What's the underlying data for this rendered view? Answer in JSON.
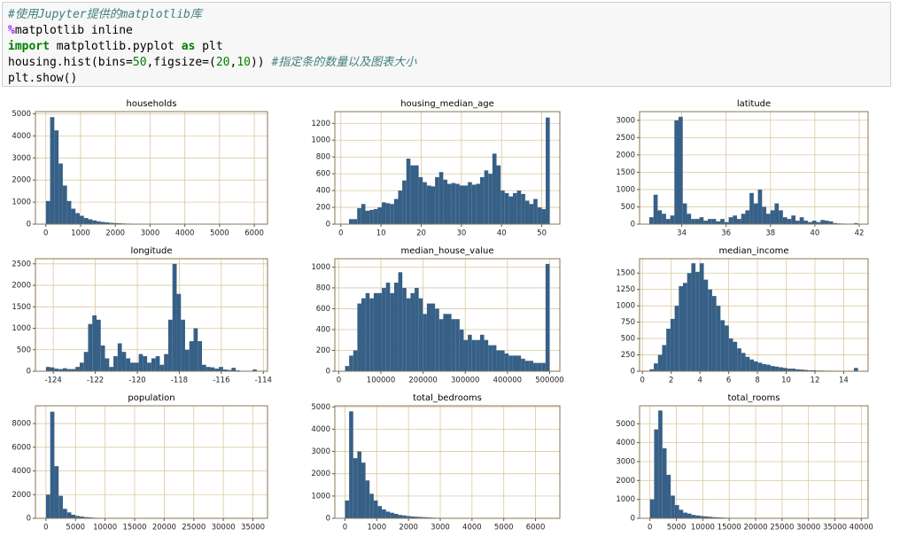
{
  "code": {
    "lines": [
      [
        "#使用Jupyter提供的matplotlib库"
      ],
      [
        "%",
        "matplotlib inline"
      ],
      [
        "import",
        " matplotlib.pyplot ",
        "as",
        " plt"
      ],
      [
        "housing.hist(bins=",
        "50",
        ",figsize=(",
        "20",
        ",",
        "10",
        ")) ",
        "#指定条的数量以及图表大小"
      ],
      [
        "plt.show()"
      ]
    ]
  },
  "chart_data": [
    {
      "type": "histogram",
      "title": "households",
      "color": "#376087",
      "grid": true,
      "bins": [
        1,
        122.6,
        244.2,
        365.9,
        487.5,
        609.1,
        730.7,
        852.3,
        974,
        1095.6,
        1217.2,
        1338.8,
        1460.4,
        1582.1,
        1703.7,
        1825.3,
        1946.9,
        2068.5,
        2190.2,
        2311.8,
        2433.4,
        2555,
        2676.6,
        2798.3,
        2919.9,
        3041.5,
        3163.1,
        3284.7,
        3406.4,
        3528,
        3649.6,
        3771.2,
        3892.8,
        4014.5,
        4136.1,
        4257.7,
        4379.3,
        4500.9,
        4622.6,
        4744.2,
        4865.8,
        4987.4,
        5109,
        5230.7,
        5352.3,
        5473.9,
        5595.5,
        5717.1,
        5838.8,
        5960.4,
        6082
      ],
      "counts": [
        1050,
        4850,
        4250,
        2750,
        1750,
        1050,
        700,
        500,
        380,
        280,
        220,
        170,
        130,
        100,
        80,
        60,
        50,
        40,
        30,
        25,
        20,
        16,
        12,
        10,
        8,
        6,
        5,
        4,
        3,
        3,
        2,
        2,
        2,
        1,
        1,
        1,
        1,
        1,
        1,
        0,
        1,
        0,
        1,
        0,
        0,
        1,
        0,
        0,
        0,
        1
      ],
      "xlim": [
        -300,
        6380
      ],
      "xticks": [
        0,
        1000,
        2000,
        3000,
        4000,
        5000,
        6000
      ],
      "ylim": [
        0,
        5100
      ],
      "yticks": [
        0,
        1000,
        2000,
        3000,
        4000,
        5000
      ]
    },
    {
      "type": "histogram",
      "title": "housing_median_age",
      "color": "#376087",
      "grid": true,
      "bins": [
        1,
        2.02,
        3.04,
        4.06,
        5.08,
        6.1,
        7.12,
        8.14,
        9.16,
        10.18,
        11.2,
        12.22,
        13.24,
        14.26,
        15.28,
        16.3,
        17.32,
        18.34,
        19.36,
        20.38,
        21.4,
        22.42,
        23.44,
        24.46,
        25.48,
        26.5,
        27.52,
        28.54,
        29.56,
        30.58,
        31.6,
        32.62,
        33.64,
        34.66,
        35.68,
        36.7,
        37.72,
        38.74,
        39.76,
        40.78,
        41.8,
        42.82,
        43.84,
        44.86,
        45.88,
        46.9,
        47.92,
        48.94,
        49.96,
        50.98,
        52
      ],
      "counts": [
        4,
        60,
        60,
        190,
        240,
        160,
        170,
        180,
        200,
        260,
        250,
        240,
        300,
        400,
        520,
        780,
        700,
        700,
        560,
        500,
        460,
        450,
        560,
        620,
        530,
        480,
        490,
        480,
        460,
        460,
        500,
        470,
        480,
        560,
        640,
        600,
        840,
        700,
        400,
        370,
        330,
        370,
        400,
        360,
        280,
        240,
        300,
        200,
        180,
        1270
      ],
      "xlim": [
        -1.5,
        54.5
      ],
      "xticks": [
        0,
        10,
        20,
        30,
        40,
        50
      ],
      "ylim": [
        0,
        1340
      ],
      "yticks": [
        0,
        200,
        400,
        600,
        800,
        1000,
        1200
      ]
    },
    {
      "type": "histogram",
      "title": "latitude",
      "color": "#376087",
      "grid": true,
      "bins": [
        32.54,
        32.728,
        32.916,
        33.105,
        33.293,
        33.481,
        33.669,
        33.857,
        34.046,
        34.234,
        34.422,
        34.61,
        34.798,
        34.987,
        35.175,
        35.363,
        35.551,
        35.739,
        35.928,
        36.116,
        36.304,
        36.492,
        36.68,
        36.869,
        37.057,
        37.245,
        37.433,
        37.621,
        37.81,
        37.998,
        38.186,
        38.374,
        38.562,
        38.751,
        38.939,
        39.127,
        39.315,
        39.503,
        39.692,
        39.88,
        40.068,
        40.256,
        40.444,
        40.633,
        40.821,
        41.009,
        41.197,
        41.385,
        41.574,
        41.762,
        41.95
      ],
      "counts": [
        200,
        850,
        400,
        300,
        150,
        250,
        3000,
        3100,
        600,
        300,
        150,
        150,
        200,
        100,
        150,
        150,
        80,
        150,
        60,
        200,
        250,
        150,
        300,
        400,
        900,
        600,
        1000,
        500,
        300,
        400,
        600,
        400,
        200,
        150,
        250,
        100,
        200,
        100,
        60,
        100,
        60,
        120,
        100,
        80,
        30,
        20,
        15,
        10,
        10,
        30
      ],
      "xlim": [
        32.1,
        42.4
      ],
      "xticks": [
        34,
        36,
        38,
        40,
        42
      ],
      "ylim": [
        0,
        3250
      ],
      "yticks": [
        0,
        500,
        1000,
        1500,
        2000,
        2500,
        3000
      ]
    },
    {
      "type": "histogram",
      "title": "longitude",
      "color": "#376087",
      "grid": true,
      "bins": [
        -124.35,
        -124.149,
        -123.948,
        -123.748,
        -123.547,
        -123.346,
        -123.145,
        -122.944,
        -122.744,
        -122.543,
        -122.342,
        -122.141,
        -121.94,
        -121.74,
        -121.539,
        -121.338,
        -121.137,
        -120.936,
        -120.736,
        -120.535,
        -120.334,
        -120.133,
        -119.932,
        -119.732,
        -119.531,
        -119.33,
        -119.129,
        -118.928,
        -118.728,
        -118.527,
        -118.326,
        -118.125,
        -117.924,
        -117.724,
        -117.523,
        -117.322,
        -117.121,
        -116.92,
        -116.72,
        -116.519,
        -116.318,
        -116.117,
        -115.916,
        -115.716,
        -115.515,
        -115.314,
        -115.113,
        -114.912,
        -114.712,
        -114.511,
        -114.31
      ],
      "counts": [
        100,
        90,
        60,
        50,
        70,
        50,
        50,
        100,
        200,
        450,
        1100,
        1300,
        1200,
        600,
        300,
        100,
        350,
        650,
        450,
        300,
        200,
        200,
        400,
        350,
        200,
        300,
        350,
        150,
        400,
        1200,
        2500,
        1800,
        1200,
        500,
        700,
        1000,
        700,
        150,
        100,
        90,
        60,
        100,
        40,
        30,
        80,
        20,
        10,
        10,
        5,
        40
      ],
      "xlim": [
        -124.85,
        -113.8
      ],
      "xticks": [
        -124,
        -122,
        -120,
        -118,
        -116,
        -114
      ],
      "ylim": [
        0,
        2620
      ],
      "yticks": [
        0,
        500,
        1000,
        1500,
        2000,
        2500
      ]
    },
    {
      "type": "histogram",
      "title": "median_house_value",
      "color": "#376087",
      "grid": true,
      "bins": [
        14999,
        24699,
        34399,
        44099,
        53799,
        63499,
        73199,
        82899,
        92599,
        102299,
        111999,
        121699,
        131399,
        141099,
        150799,
        160499,
        170199,
        179899,
        189599,
        199299,
        208999,
        218699,
        228399,
        238099,
        247799,
        257499,
        267199,
        276899,
        286599,
        296299,
        305999,
        315699,
        325399,
        335099,
        344799,
        354499,
        364199,
        373899,
        383599,
        393299,
        402999,
        412700,
        422400,
        432100,
        441800,
        451500,
        461200,
        470900,
        480600,
        490300,
        500001
      ],
      "counts": [
        50,
        150,
        200,
        650,
        700,
        750,
        700,
        750,
        750,
        800,
        850,
        750,
        850,
        950,
        800,
        700,
        750,
        800,
        700,
        550,
        650,
        650,
        600,
        500,
        550,
        550,
        500,
        500,
        400,
        300,
        350,
        300,
        300,
        350,
        300,
        250,
        250,
        200,
        200,
        170,
        150,
        150,
        150,
        120,
        100,
        100,
        80,
        80,
        80,
        1030
      ],
      "xlim": [
        -9250,
        524250
      ],
      "xticks": [
        0,
        100000,
        200000,
        300000,
        400000,
        500000
      ],
      "ylim": [
        0,
        1080
      ],
      "yticks": [
        0,
        200,
        400,
        600,
        800,
        1000
      ]
    },
    {
      "type": "histogram",
      "title": "median_income",
      "color": "#376087",
      "grid": true,
      "bins": [
        0.5,
        0.79,
        1.08,
        1.37,
        1.66,
        1.95,
        2.24,
        2.53,
        2.82,
        3.11,
        3.4,
        3.69,
        3.98,
        4.27,
        4.56,
        4.85,
        5.14,
        5.43,
        5.72,
        6.01,
        6.3,
        6.59,
        6.88,
        7.17,
        7.46,
        7.75,
        8.04,
        8.33,
        8.62,
        8.91,
        9.2,
        9.49,
        9.78,
        10.07,
        10.36,
        10.65,
        10.94,
        11.23,
        11.52,
        11.81,
        12.1,
        12.39,
        12.68,
        12.97,
        13.26,
        13.55,
        13.84,
        14.13,
        14.42,
        14.71,
        15
      ],
      "counts": [
        30,
        120,
        250,
        400,
        650,
        800,
        1000,
        1300,
        1350,
        1500,
        1650,
        1520,
        1650,
        1400,
        1250,
        1150,
        1000,
        780,
        700,
        500,
        450,
        350,
        280,
        220,
        180,
        150,
        130,
        110,
        100,
        80,
        70,
        60,
        50,
        40,
        40,
        30,
        25,
        20,
        15,
        15,
        10,
        10,
        8,
        8,
        5,
        5,
        5,
        4,
        3,
        50
      ],
      "xlim": [
        -0.2,
        15.7
      ],
      "xticks": [
        0,
        2,
        4,
        6,
        8,
        10,
        12,
        14
      ],
      "ylim": [
        0,
        1720
      ],
      "yticks": [
        0,
        250,
        500,
        750,
        1000,
        1250,
        1500
      ]
    },
    {
      "type": "histogram",
      "title": "population",
      "color": "#376087",
      "grid": true,
      "bins": [
        3,
        717,
        1430,
        2144,
        2857,
        3571,
        4284,
        4998,
        5712,
        6425,
        7139,
        7852,
        8566,
        9280,
        9993,
        10707,
        11420,
        12134,
        12847,
        13561,
        14275,
        14988,
        15702,
        16415,
        17129,
        17842,
        18556,
        19270,
        19983,
        20697,
        21410,
        22124,
        22837,
        23551,
        24265,
        24978,
        25692,
        26405,
        27119,
        27832,
        28546,
        29260,
        29973,
        30687,
        31400,
        32114,
        32828,
        33541,
        34255,
        34968,
        35682
      ],
      "counts": [
        2000,
        9000,
        4400,
        1900,
        800,
        500,
        300,
        200,
        150,
        100,
        80,
        50,
        40,
        30,
        20,
        15,
        10,
        8,
        5,
        5,
        3,
        2,
        2,
        1,
        1,
        1,
        1,
        0,
        1,
        0,
        0,
        0,
        1,
        0,
        0,
        0,
        0,
        0,
        0,
        0,
        0,
        0,
        0,
        0,
        0,
        0,
        0,
        0,
        0,
        1
      ],
      "xlim": [
        -1780,
        37470
      ],
      "xticks": [
        0,
        5000,
        10000,
        15000,
        20000,
        25000,
        30000,
        35000
      ],
      "ylim": [
        0,
        9500
      ],
      "yticks": [
        0,
        2000,
        4000,
        6000,
        8000
      ]
    },
    {
      "type": "histogram",
      "title": "total_bedrooms",
      "color": "#376087",
      "grid": true,
      "bins": [
        1,
        130,
        259,
        388,
        517,
        645,
        774,
        903,
        1032,
        1161,
        1290,
        1419,
        1548,
        1676,
        1805,
        1934,
        2063,
        2192,
        2321,
        2450,
        2579,
        2707,
        2836,
        2965,
        3094,
        3223,
        3352,
        3481,
        3610,
        3739,
        3867,
        3996,
        4125,
        4254,
        4383,
        4512,
        4641,
        4770,
        4898,
        5027,
        5156,
        5285,
        5414,
        5543,
        5672,
        5801,
        5930,
        6058,
        6187,
        6316,
        6445
      ],
      "counts": [
        800,
        4800,
        2700,
        3000,
        2500,
        1700,
        1100,
        800,
        550,
        400,
        300,
        250,
        200,
        150,
        130,
        100,
        80,
        70,
        60,
        50,
        40,
        30,
        25,
        20,
        15,
        12,
        10,
        8,
        6,
        5,
        4,
        3,
        3,
        2,
        2,
        1,
        1,
        1,
        0,
        1,
        0,
        1,
        0,
        0,
        0,
        0,
        0,
        0,
        0,
        1
      ],
      "xlim": [
        -320,
        6766
      ],
      "xticks": [
        0,
        1000,
        2000,
        3000,
        4000,
        5000,
        6000
      ],
      "ylim": [
        0,
        5050
      ],
      "yticks": [
        0,
        1000,
        2000,
        3000,
        4000,
        5000
      ]
    },
    {
      "type": "histogram",
      "title": "total_rooms",
      "color": "#376087",
      "grid": true,
      "bins": [
        2,
        788,
        1575,
        2361,
        3147,
        3934,
        4720,
        5507,
        6293,
        7079,
        7866,
        8652,
        9438,
        10225,
        11011,
        11797,
        12584,
        13370,
        14156,
        14943,
        15729,
        16516,
        17302,
        18088,
        18875,
        19661,
        20447,
        21234,
        22020,
        22806,
        23593,
        24379,
        25166,
        25952,
        26738,
        27525,
        28311,
        29097,
        29884,
        30670,
        31456,
        32243,
        33029,
        33815,
        34602,
        35388,
        36175,
        36961,
        37747,
        38534,
        39320
      ],
      "counts": [
        1000,
        4700,
        5700,
        3700,
        2300,
        1200,
        700,
        450,
        300,
        250,
        180,
        150,
        120,
        100,
        80,
        60,
        50,
        40,
        30,
        25,
        20,
        15,
        12,
        10,
        8,
        6,
        5,
        4,
        3,
        3,
        2,
        2,
        1,
        1,
        1,
        0,
        1,
        0,
        0,
        0,
        1,
        0,
        0,
        0,
        0,
        0,
        0,
        0,
        0,
        1
      ],
      "xlim": [
        -1964,
        41286
      ],
      "xticks": [
        0,
        5000,
        10000,
        15000,
        20000,
        25000,
        30000,
        35000,
        40000
      ],
      "ylim": [
        0,
        5950
      ],
      "yticks": [
        0,
        1000,
        2000,
        3000,
        4000,
        5000
      ]
    }
  ]
}
